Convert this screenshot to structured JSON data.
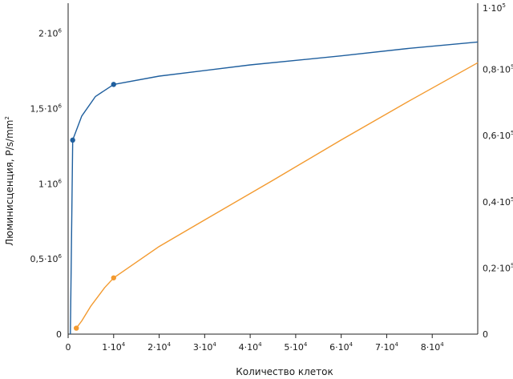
{
  "chart_data": {
    "type": "line",
    "xlabel": "Количество клеток",
    "ylabel": "Люминисценция, P/s/mm",
    "ylabel_sup": "2",
    "xlim": [
      0,
      90000
    ],
    "ylim_left": [
      0,
      2200000
    ],
    "ylim_right": [
      0,
      100000
    ],
    "grid": false,
    "x_ticks": [
      {
        "value": 0,
        "base": "0",
        "sup": ""
      },
      {
        "value": 10000,
        "base": "1·10",
        "sup": "4"
      },
      {
        "value": 20000,
        "base": "2·10",
        "sup": "4"
      },
      {
        "value": 30000,
        "base": "3·10",
        "sup": "4"
      },
      {
        "value": 40000,
        "base": "4·10",
        "sup": "4"
      },
      {
        "value": 50000,
        "base": "5·10",
        "sup": "4"
      },
      {
        "value": 60000,
        "base": "6·10",
        "sup": "4"
      },
      {
        "value": 70000,
        "base": "7·10",
        "sup": "4"
      },
      {
        "value": 80000,
        "base": "8·10",
        "sup": "4"
      }
    ],
    "y_left_ticks": [
      {
        "value": 0,
        "base": "0",
        "sup": ""
      },
      {
        "value": 500000,
        "base": "0,5·10",
        "sup": "6"
      },
      {
        "value": 1000000,
        "base": "1·10",
        "sup": "6"
      },
      {
        "value": 1500000,
        "base": "1,5·10",
        "sup": "6"
      },
      {
        "value": 2000000,
        "base": "2·10",
        "sup": "6"
      }
    ],
    "y_right_ticks": [
      {
        "value": 0,
        "base": "0",
        "sup": ""
      },
      {
        "value": 20000,
        "base": "0,2·10",
        "sup": "5"
      },
      {
        "value": 40000,
        "base": "0,4·10",
        "sup": "5"
      },
      {
        "value": 60000,
        "base": "0,6·10",
        "sup": "5"
      },
      {
        "value": 80000,
        "base": "0,8·10",
        "sup": "5"
      },
      {
        "value": 100000,
        "base": "1·10",
        "sup": "5"
      }
    ],
    "series": [
      {
        "axis": "left",
        "color": "#1f5f9e",
        "line": [
          [
            500,
            0
          ],
          [
            1000,
            1290000
          ],
          [
            3000,
            1450000
          ],
          [
            6000,
            1580000
          ],
          [
            10000,
            1660000
          ],
          [
            20000,
            1715000
          ],
          [
            40000,
            1790000
          ],
          [
            60000,
            1850000
          ],
          [
            75000,
            1900000
          ],
          [
            90000,
            1942000
          ]
        ],
        "markers": [
          [
            1000,
            1290000
          ],
          [
            10000,
            1660000
          ]
        ]
      },
      {
        "axis": "right",
        "color": "#f39a2f",
        "line": [
          [
            1800,
            1800
          ],
          [
            3000,
            4000
          ],
          [
            5000,
            8500
          ],
          [
            8000,
            14000
          ],
          [
            10000,
            17000
          ],
          [
            20000,
            26500
          ],
          [
            30000,
            34500
          ],
          [
            45000,
            46500
          ],
          [
            60000,
            58700
          ],
          [
            75000,
            70500
          ],
          [
            90000,
            82000
          ]
        ],
        "markers": [
          [
            1800,
            1800
          ],
          [
            10000,
            17000
          ]
        ]
      }
    ]
  }
}
